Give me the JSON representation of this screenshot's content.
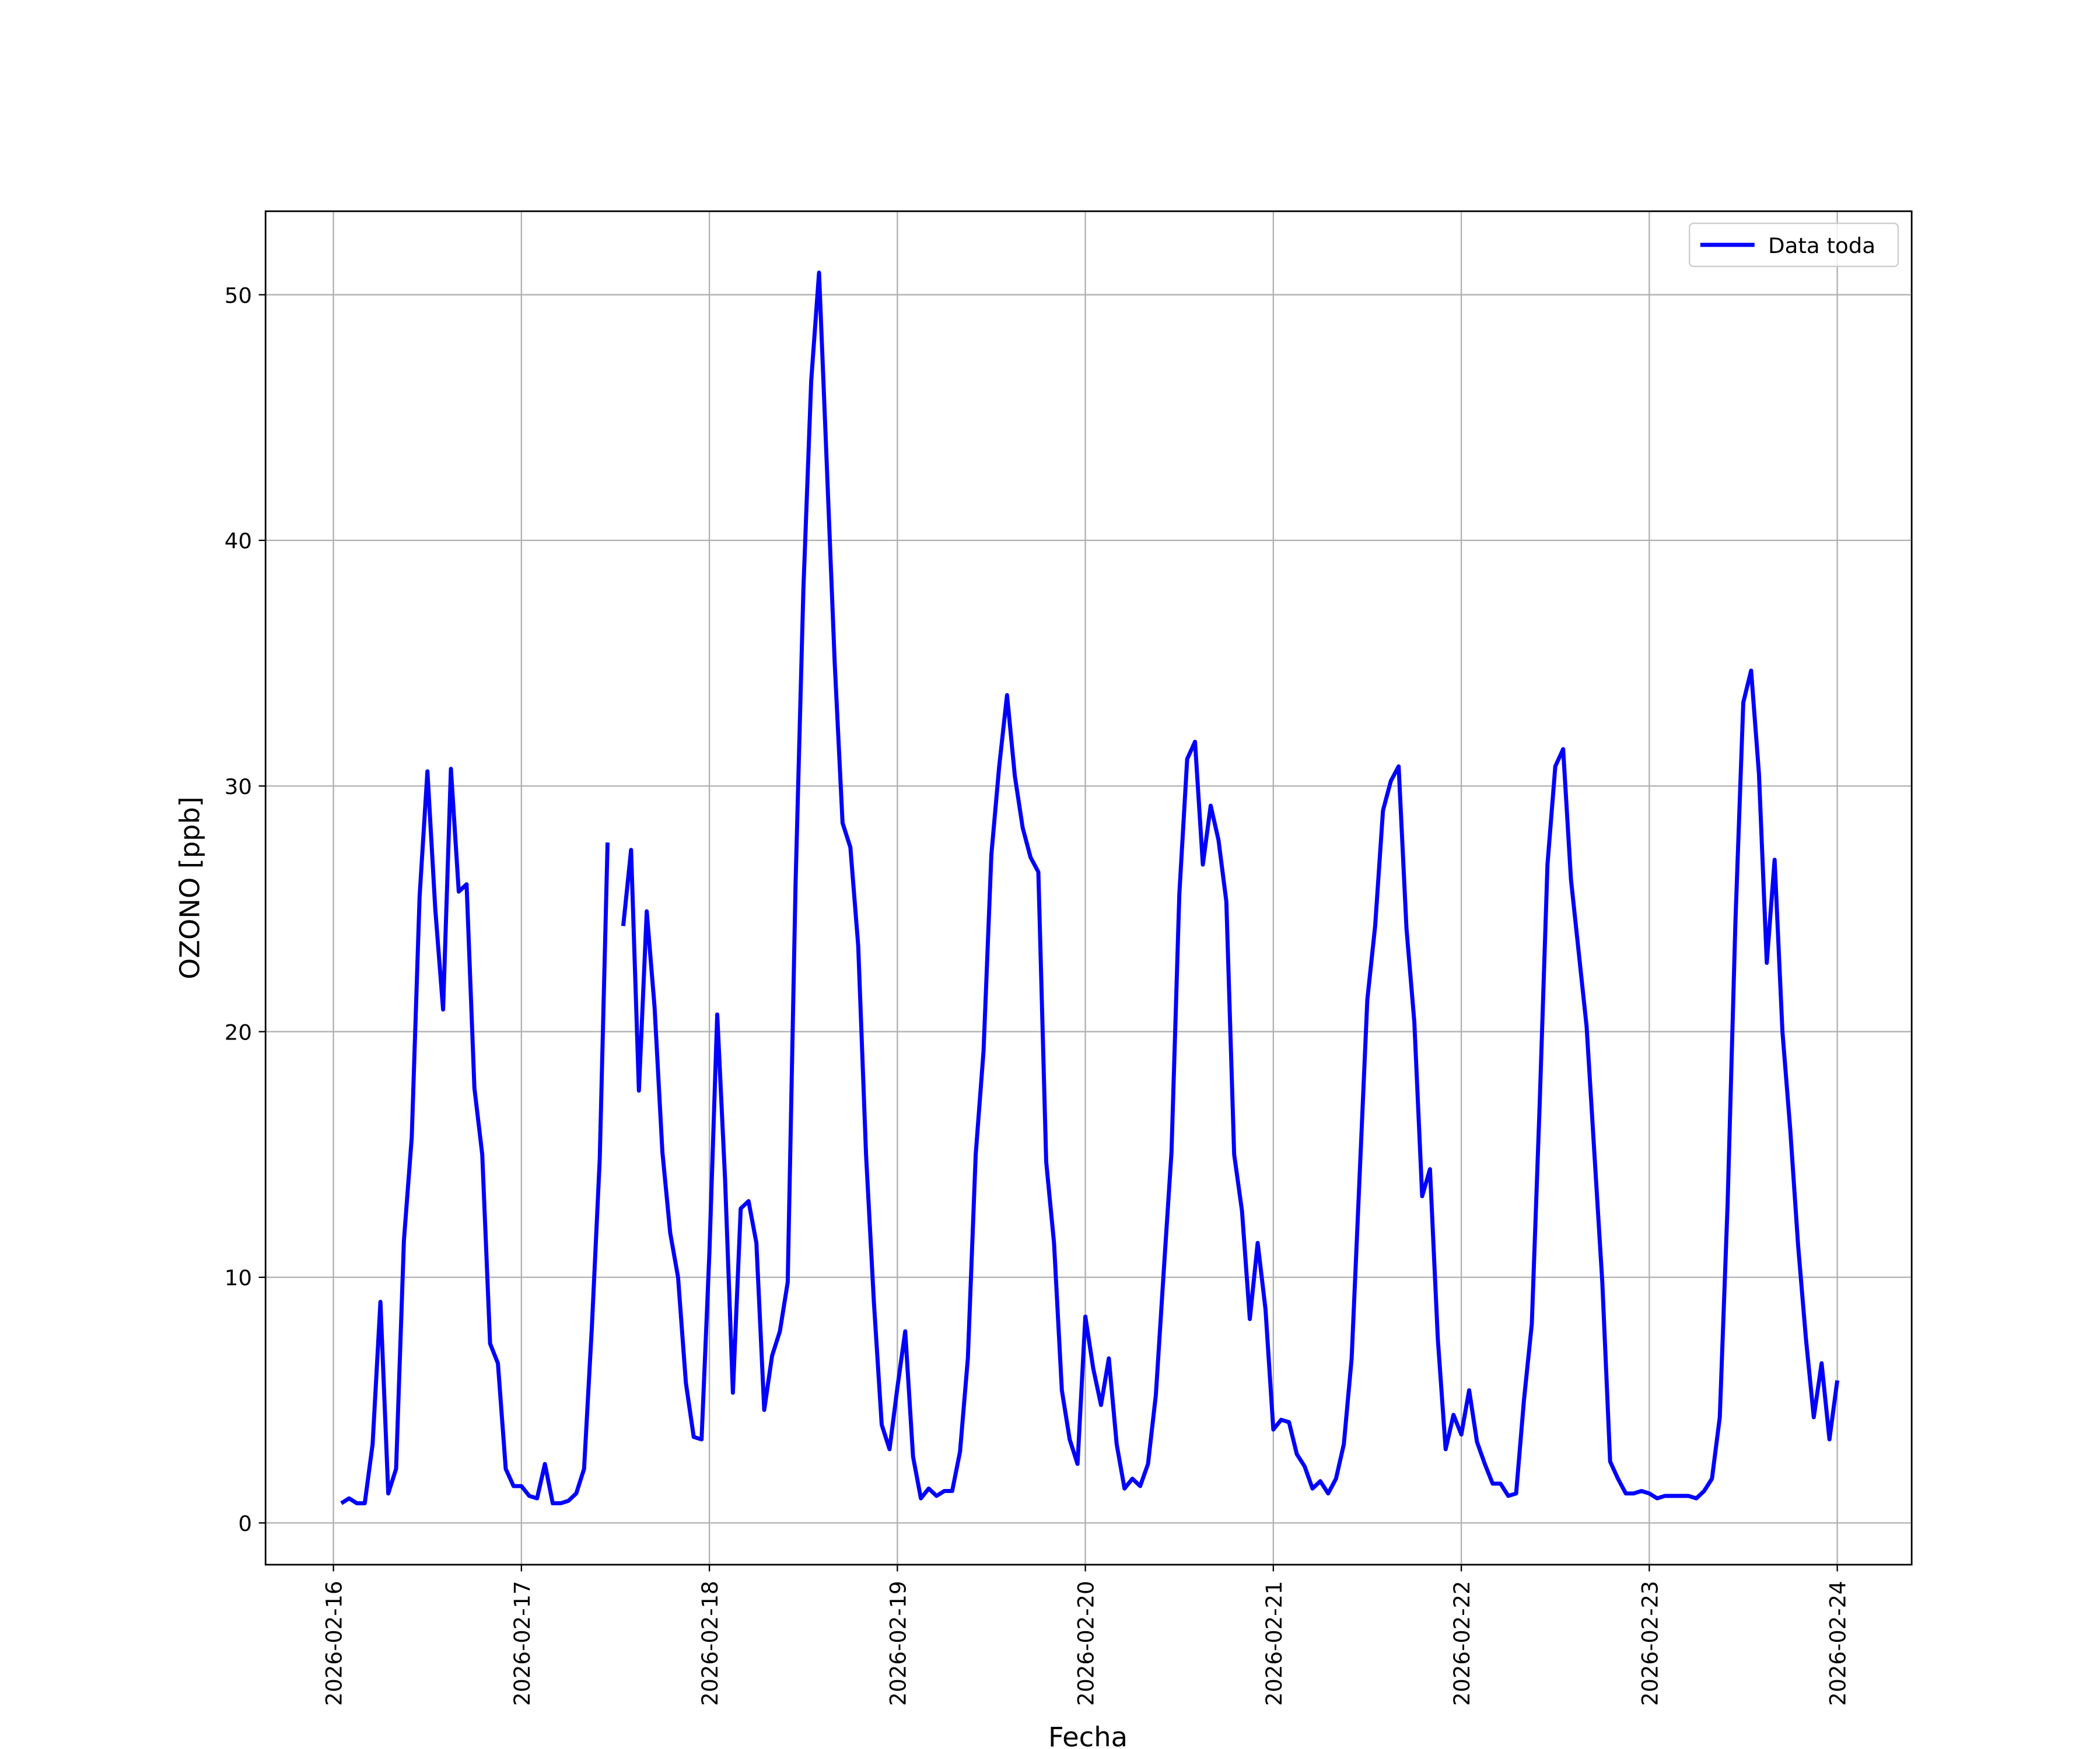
{
  "chart_data": {
    "type": "line",
    "x_label": "Fecha",
    "y_label": "OZONO [ppb]",
    "x": [
      "2026-02-16 01:00",
      "2026-02-16 02:00",
      "2026-02-16 03:00",
      "2026-02-16 04:00",
      "2026-02-16 05:00",
      "2026-02-16 06:00",
      "2026-02-16 07:00",
      "2026-02-16 08:00",
      "2026-02-16 09:00",
      "2026-02-16 10:00",
      "2026-02-16 11:00",
      "2026-02-16 12:00",
      "2026-02-16 13:00",
      "2026-02-16 14:00",
      "2026-02-16 15:00",
      "2026-02-16 16:00",
      "2026-02-16 17:00",
      "2026-02-16 18:00",
      "2026-02-16 19:00",
      "2026-02-16 20:00",
      "2026-02-16 21:00",
      "2026-02-16 22:00",
      "2026-02-16 23:00",
      "2026-02-17 00:00",
      "2026-02-17 01:00",
      "2026-02-17 02:00",
      "2026-02-17 03:00",
      "2026-02-17 04:00",
      "2026-02-17 05:00",
      "2026-02-17 06:00",
      "2026-02-17 07:00",
      "2026-02-17 08:00",
      "2026-02-17 09:00",
      "2026-02-17 10:00",
      "2026-02-17 11:00",
      "2026-02-17 12:00",
      "2026-02-17 13:00",
      "2026-02-17 14:00",
      "2026-02-17 15:00",
      "2026-02-17 16:00",
      "2026-02-17 17:00",
      "2026-02-17 18:00",
      "2026-02-17 19:00",
      "2026-02-17 20:00",
      "2026-02-17 21:00",
      "2026-02-17 22:00",
      "2026-02-17 23:00",
      "2026-02-18 00:00",
      "2026-02-18 01:00",
      "2026-02-18 02:00",
      "2026-02-18 03:00",
      "2026-02-18 04:00",
      "2026-02-18 05:00",
      "2026-02-18 06:00",
      "2026-02-18 07:00",
      "2026-02-18 08:00",
      "2026-02-18 09:00",
      "2026-02-18 10:00",
      "2026-02-18 11:00",
      "2026-02-18 12:00",
      "2026-02-18 13:00",
      "2026-02-18 14:00",
      "2026-02-18 15:00",
      "2026-02-18 16:00",
      "2026-02-18 17:00",
      "2026-02-18 18:00",
      "2026-02-18 19:00",
      "2026-02-18 20:00",
      "2026-02-18 21:00",
      "2026-02-18 22:00",
      "2026-02-18 23:00",
      "2026-02-19 00:00",
      "2026-02-19 01:00",
      "2026-02-19 02:00",
      "2026-02-19 03:00",
      "2026-02-19 04:00",
      "2026-02-19 05:00",
      "2026-02-19 06:00",
      "2026-02-19 07:00",
      "2026-02-19 08:00",
      "2026-02-19 09:00",
      "2026-02-19 10:00",
      "2026-02-19 11:00",
      "2026-02-19 12:00",
      "2026-02-19 13:00",
      "2026-02-19 14:00",
      "2026-02-19 15:00",
      "2026-02-19 16:00",
      "2026-02-19 17:00",
      "2026-02-19 18:00",
      "2026-02-19 19:00",
      "2026-02-19 20:00",
      "2026-02-19 21:00",
      "2026-02-19 22:00",
      "2026-02-19 23:00",
      "2026-02-20 00:00",
      "2026-02-20 01:00",
      "2026-02-20 02:00",
      "2026-02-20 03:00",
      "2026-02-20 04:00",
      "2026-02-20 05:00",
      "2026-02-20 06:00",
      "2026-02-20 07:00",
      "2026-02-20 08:00",
      "2026-02-20 09:00",
      "2026-02-20 10:00",
      "2026-02-20 11:00",
      "2026-02-20 12:00",
      "2026-02-20 13:00",
      "2026-02-20 14:00",
      "2026-02-20 15:00",
      "2026-02-20 16:00",
      "2026-02-20 17:00",
      "2026-02-20 18:00",
      "2026-02-20 19:00",
      "2026-02-20 20:00",
      "2026-02-20 21:00",
      "2026-02-20 22:00",
      "2026-02-20 23:00",
      "2026-02-21 00:00",
      "2026-02-21 01:00",
      "2026-02-21 02:00",
      "2026-02-21 03:00",
      "2026-02-21 04:00",
      "2026-02-21 05:00",
      "2026-02-21 06:00",
      "2026-02-21 07:00",
      "2026-02-21 08:00",
      "2026-02-21 09:00",
      "2026-02-21 10:00",
      "2026-02-21 11:00",
      "2026-02-21 12:00",
      "2026-02-21 13:00",
      "2026-02-21 14:00",
      "2026-02-21 15:00",
      "2026-02-21 16:00",
      "2026-02-21 17:00",
      "2026-02-21 18:00",
      "2026-02-21 19:00",
      "2026-02-21 20:00",
      "2026-02-21 21:00",
      "2026-02-21 22:00",
      "2026-02-21 23:00",
      "2026-02-22 00:00",
      "2026-02-22 01:00",
      "2026-02-22 02:00",
      "2026-02-22 03:00",
      "2026-02-22 04:00",
      "2026-02-22 05:00",
      "2026-02-22 06:00",
      "2026-02-22 07:00",
      "2026-02-22 08:00",
      "2026-02-22 09:00",
      "2026-02-22 10:00",
      "2026-02-22 11:00",
      "2026-02-22 12:00",
      "2026-02-22 13:00",
      "2026-02-22 14:00",
      "2026-02-22 15:00",
      "2026-02-22 16:00",
      "2026-02-22 17:00",
      "2026-02-22 18:00",
      "2026-02-22 19:00",
      "2026-02-22 20:00",
      "2026-02-22 21:00",
      "2026-02-22 22:00",
      "2026-02-22 23:00",
      "2026-02-23 00:00",
      "2026-02-23 01:00",
      "2026-02-23 02:00",
      "2026-02-23 03:00",
      "2026-02-23 04:00",
      "2026-02-23 05:00",
      "2026-02-23 06:00",
      "2026-02-23 07:00",
      "2026-02-23 08:00",
      "2026-02-23 09:00",
      "2026-02-23 10:00",
      "2026-02-23 11:00",
      "2026-02-23 12:00",
      "2026-02-23 13:00",
      "2026-02-23 14:00",
      "2026-02-23 15:00",
      "2026-02-23 16:00",
      "2026-02-23 17:00",
      "2026-02-23 18:00",
      "2026-02-23 19:00",
      "2026-02-23 20:00",
      "2026-02-23 21:00",
      "2026-02-23 22:00",
      "2026-02-23 23:00",
      "2026-02-24 00:00"
    ],
    "series": [
      {
        "name": "Data toda",
        "color": "#0000ff",
        "values": [
          0.8,
          1.0,
          0.8,
          0.8,
          3.2,
          9.0,
          1.2,
          2.2,
          11.5,
          15.7,
          25.5,
          30.6,
          25,
          20.9,
          30.7,
          25.7,
          26,
          17.7,
          15,
          7.3,
          6.5,
          2.2,
          1.5,
          1.5,
          1.1,
          1.0,
          2.4,
          0.8,
          0.8,
          0.9,
          1.2,
          2.2,
          8,
          14.8,
          27.7,
          null,
          24.3,
          27.4,
          17.6,
          24.9,
          21,
          15.1,
          11.8,
          10,
          5.7,
          3.5,
          3.4,
          11,
          20.7,
          14,
          5.3,
          12.8,
          13.1,
          11.4,
          4.6,
          6.8,
          7.8,
          9.8,
          26,
          38,
          46.5,
          50.9,
          43,
          35,
          28.5,
          27.5,
          23.5,
          15,
          9,
          4,
          3,
          5.5,
          7.8,
          2.7,
          1.0,
          1.4,
          1.1,
          1.3,
          1.3,
          2.9,
          6.7,
          15,
          19.2,
          27.2,
          30.8,
          33.7,
          30.4,
          28.3,
          27.1,
          26.5,
          14.7,
          11.4,
          5.4,
          3.4,
          2.4,
          8.4,
          6.3,
          4.8,
          6.7,
          3.2,
          1.4,
          1.8,
          1.5,
          2.4,
          5.2,
          10.2,
          15.1,
          25.6,
          31.1,
          31.8,
          26.8,
          29.2,
          27.8,
          25.3,
          15,
          12.7,
          8.3,
          11.4,
          8.7,
          3.8,
          4.2,
          4.1,
          2.8,
          2.3,
          1.4,
          1.7,
          1.2,
          1.8,
          3.2,
          6.7,
          14,
          21.3,
          24.3,
          29,
          30.2,
          30.8,
          24.2,
          20.4,
          13.3,
          14.4,
          7.5,
          3,
          4.4,
          3.6,
          5.4,
          3.3,
          2.4,
          1.6,
          1.6,
          1.1,
          1.2,
          5,
          8.1,
          17,
          26.8,
          30.8,
          31.5,
          26.2,
          23.2,
          20.2,
          15,
          9.8,
          2.5,
          1.8,
          1.2,
          1.2,
          1.3,
          1.2,
          1.0,
          1.1,
          1.1,
          1.1,
          1.1,
          1.0,
          1.3,
          1.8,
          4.3,
          13,
          24.5,
          33.4,
          34.7,
          30.5,
          22.8,
          27,
          20,
          16,
          11.3,
          7.5,
          4.3,
          6.5,
          3.4,
          5.8
        ]
      }
    ],
    "xlim": [
      "2026-02-15 15:20",
      "2026-02-24 09:30"
    ],
    "xticks": [
      "2026-02-16",
      "2026-02-17",
      "2026-02-18",
      "2026-02-19",
      "2026-02-20",
      "2026-02-21",
      "2026-02-22",
      "2026-02-23",
      "2026-02-24"
    ],
    "ylim": [
      -1.7,
      53.4
    ],
    "yticks": [
      0,
      10,
      20,
      30,
      40,
      50
    ],
    "grid": true,
    "legend": "upper right"
  }
}
